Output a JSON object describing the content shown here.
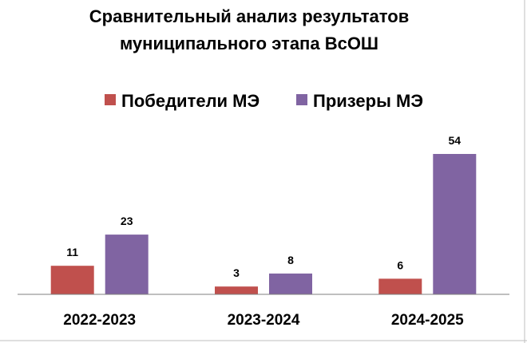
{
  "chart_data": {
    "type": "bar",
    "title_lines": [
      "Сравнительный анализ результатов",
      "муниципального этапа ВсОШ"
    ],
    "categories": [
      "2022-2023",
      "2023-2024",
      "2024-2025"
    ],
    "series": [
      {
        "name": "Победители МЭ",
        "values": [
          11,
          3,
          6
        ],
        "color": "#c0504d"
      },
      {
        "name": "Призеры МЭ",
        "values": [
          23,
          8,
          54
        ],
        "color": "#8064a2"
      }
    ],
    "ylim": [
      0,
      58
    ],
    "legend_position": "top",
    "grid": false,
    "data_labels": true
  }
}
